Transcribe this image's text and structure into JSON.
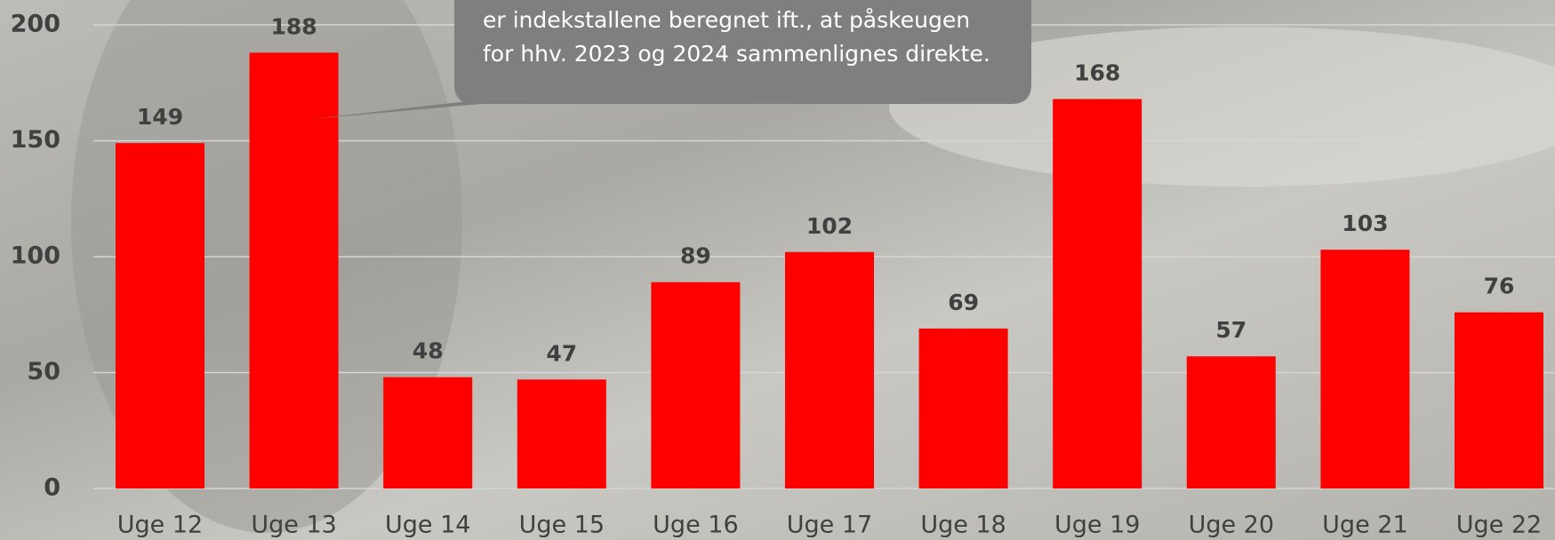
{
  "chart_data": {
    "type": "bar",
    "categories": [
      "Uge 12",
      "Uge 13",
      "Uge 14",
      "Uge 15",
      "Uge 16",
      "Uge 17",
      "Uge 18",
      "Uge 19",
      "Uge 20",
      "Uge 21",
      "Uge 22"
    ],
    "values": [
      149,
      188,
      48,
      47,
      89,
      102,
      69,
      168,
      57,
      103,
      76
    ],
    "color": "#ff0000",
    "ylim": [
      0,
      200
    ],
    "yticks": [
      0,
      50,
      100,
      150,
      200
    ],
    "grid": true,
    "annotation": [
      "er indekstallene beregnet ift., at påskeugen",
      "for hhv. 2023 og 2024 sammenlignes direkte."
    ]
  }
}
